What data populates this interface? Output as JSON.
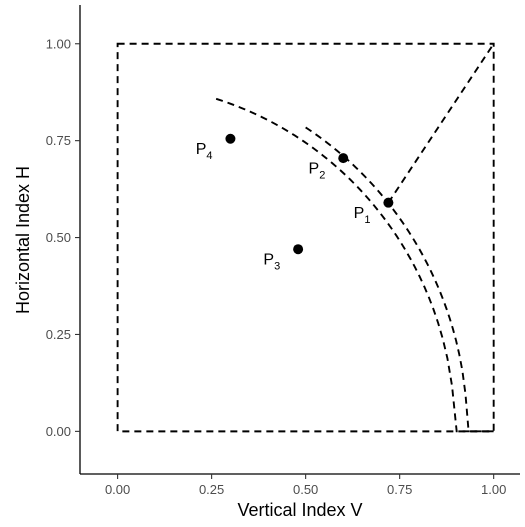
{
  "chart_data": {
    "type": "scatter",
    "xlabel": "Vertical Index V",
    "ylabel": "Horizontal Index H",
    "xlim": [
      -0.1,
      1.07
    ],
    "ylim": [
      -0.11,
      1.1
    ],
    "x_ticks": [
      0.0,
      0.25,
      0.5,
      0.75,
      1.0
    ],
    "x_tick_labels": [
      "0.00",
      "0.25",
      "0.50",
      "0.75",
      "1.00"
    ],
    "y_ticks": [
      0.0,
      0.25,
      0.5,
      0.75,
      1.0
    ],
    "y_tick_labels": [
      "0.00",
      "0.25",
      "0.50",
      "0.75",
      "1.00"
    ],
    "grid": false,
    "points": [
      {
        "name": "P",
        "sub": "1",
        "x": 0.72,
        "y": 0.59,
        "label_dx": -0.07,
        "label_dy": -0.04
      },
      {
        "name": "P",
        "sub": "2",
        "x": 0.6,
        "y": 0.705,
        "label_dx": -0.07,
        "label_dy": -0.04
      },
      {
        "name": "P",
        "sub": "3",
        "x": 0.48,
        "y": 0.47,
        "label_dx": -0.07,
        "label_dy": -0.04
      },
      {
        "name": "P",
        "sub": "4",
        "x": 0.3,
        "y": 0.755,
        "label_dx": -0.07,
        "label_dy": -0.04
      }
    ],
    "dashed_box": {
      "x": [
        0,
        1
      ],
      "y": [
        0,
        1
      ]
    },
    "dashed_lines": [
      {
        "name": "ray",
        "x": [
          0.72,
          1.0
        ],
        "y": [
          0.59,
          1.0
        ]
      }
    ],
    "dashed_curves": [
      {
        "name": "inner-arc",
        "center": [
          0,
          0
        ],
        "radius": 0.93,
        "x_from": 0.5,
        "x_to": 1.0
      },
      {
        "name": "outer-arc",
        "center": [
          0,
          0
        ],
        "radius": 0.897,
        "x_from": 0.262,
        "x_to": 1.0
      }
    ]
  }
}
